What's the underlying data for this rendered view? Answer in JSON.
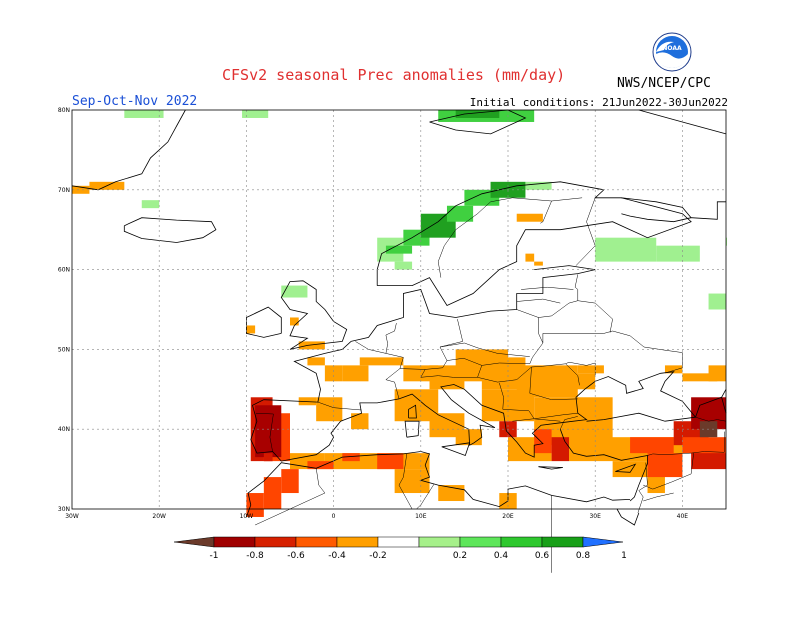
{
  "header": {
    "title": "CFSv2 seasonal Prec anomalies (mm/day)",
    "season": "Sep-Oct-Nov 2022",
    "init": "Initial conditions: 21Jun2022-30Jun2022",
    "org": "NWS/NCEP/CPC",
    "logo_icon": "noaa-logo-icon",
    "logo_text": "NOAA"
  },
  "map": {
    "lat_labels": [
      "80N",
      "70N",
      "60N",
      "50N",
      "40N",
      "30N"
    ],
    "lon_labels": [
      "30W",
      "20W",
      "10W",
      "0",
      "10E",
      "20E",
      "30E",
      "40E"
    ],
    "lon_range": [
      -30,
      45
    ],
    "lat_range": [
      30,
      80
    ]
  },
  "colorbar": {
    "labels": [
      "-1",
      "-0.8",
      "-0.6",
      "-0.4",
      "-0.2",
      "0.2",
      "0.4",
      "0.6",
      "0.8",
      "1"
    ],
    "colors": [
      "#6b3a2a",
      "#a00000",
      "#d62000",
      "#ff5a00",
      "#ff9f00",
      "#ffffff",
      "#a6f08a",
      "#5ee65a",
      "#2ec82e",
      "#18a018",
      "#2070ff"
    ]
  },
  "colors": {
    "orange": "#ffa000",
    "red_orange": "#ff4500",
    "red": "#d41a00",
    "dark_red": "#a80000",
    "brown": "#6b3a2a",
    "light_green": "#a0f090",
    "green": "#40d040",
    "dark_green": "#20a020"
  }
}
